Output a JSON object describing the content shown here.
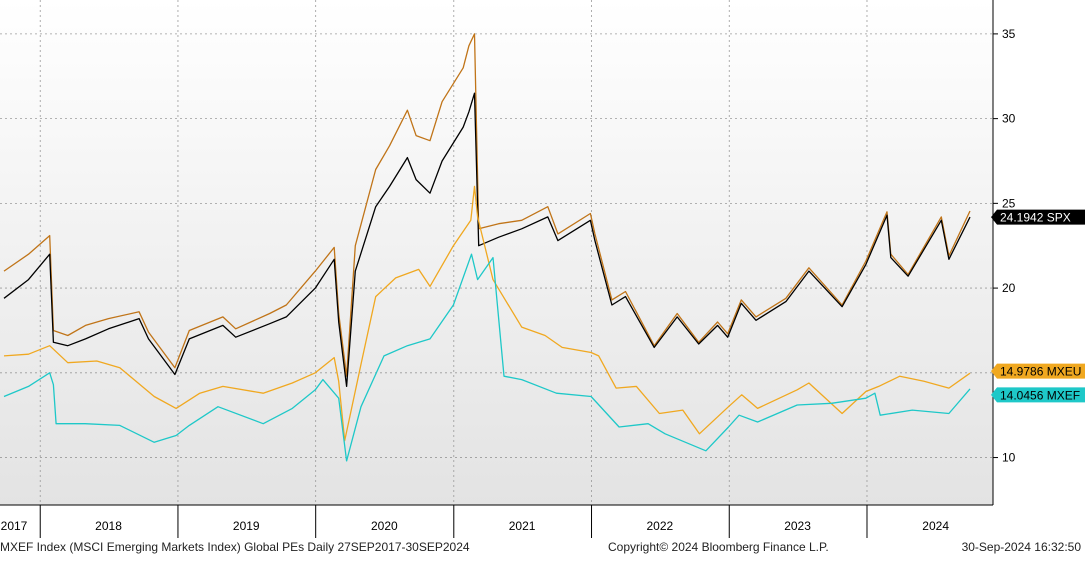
{
  "footer": {
    "description": "MXEF Index (MSCI Emerging Markets Index) Global PEs  Daily 27SEP2017-30SEP2024",
    "copyright": "Copyright© 2024 Bloomberg Finance L.P.",
    "timestamp": "30-Sep-2024 16:32:50"
  },
  "chart_data": {
    "type": "line",
    "title": "",
    "xlabel": "",
    "ylabel": "",
    "x_range": [
      "2017-09-27",
      "2024-09-30"
    ],
    "ylim": [
      7.2,
      37
    ],
    "y_ticks": [
      10,
      15,
      20,
      25,
      30,
      35
    ],
    "x_tick_labels": [
      "2017",
      "2018",
      "2019",
      "2020",
      "2021",
      "2022",
      "2023",
      "2024"
    ],
    "x_tick_dates": [
      "2017-07-01",
      "2018-07-01",
      "2019-07-01",
      "2020-07-01",
      "2021-07-01",
      "2022-07-01",
      "2023-07-01",
      "2024-07-01"
    ],
    "year_boundaries": [
      "2018-01-01",
      "2019-01-01",
      "2020-01-01",
      "2021-01-01",
      "2022-01-01",
      "2023-01-01",
      "2024-01-01"
    ],
    "grid": true,
    "series": [
      {
        "id": "brown",
        "color": "#c07418",
        "points": [
          [
            "2017-09-27",
            21.0
          ],
          [
            "2017-12-01",
            22.0
          ],
          [
            "2018-01-26",
            23.1
          ],
          [
            "2018-02-05",
            17.5
          ],
          [
            "2018-03-15",
            17.2
          ],
          [
            "2018-05-01",
            17.8
          ],
          [
            "2018-07-01",
            18.2
          ],
          [
            "2018-09-20",
            18.6
          ],
          [
            "2018-10-15",
            17.4
          ],
          [
            "2018-12-24",
            15.3
          ],
          [
            "2019-01-31",
            17.5
          ],
          [
            "2019-04-30",
            18.3
          ],
          [
            "2019-06-03",
            17.6
          ],
          [
            "2019-09-01",
            18.5
          ],
          [
            "2019-10-15",
            19.0
          ],
          [
            "2019-12-31",
            21.0
          ],
          [
            "2020-02-19",
            22.4
          ],
          [
            "2020-03-02",
            18.5
          ],
          [
            "2020-03-23",
            14.8
          ],
          [
            "2020-04-15",
            22.5
          ],
          [
            "2020-06-08",
            27.0
          ],
          [
            "2020-07-15",
            28.4
          ],
          [
            "2020-08-31",
            30.5
          ],
          [
            "2020-09-23",
            29.0
          ],
          [
            "2020-10-30",
            28.7
          ],
          [
            "2020-12-01",
            31.0
          ],
          [
            "2021-01-26",
            33.0
          ],
          [
            "2021-02-10",
            34.3
          ],
          [
            "2021-02-25",
            35.0
          ],
          [
            "2021-03-08",
            23.5
          ],
          [
            "2021-04-30",
            23.8
          ],
          [
            "2021-06-30",
            24.0
          ],
          [
            "2021-09-07",
            24.8
          ],
          [
            "2021-10-04",
            23.2
          ],
          [
            "2021-12-29",
            24.4
          ],
          [
            "2022-01-10",
            23.2
          ],
          [
            "2022-02-24",
            19.3
          ],
          [
            "2022-04-01",
            19.8
          ],
          [
            "2022-06-16",
            16.6
          ],
          [
            "2022-08-16",
            18.5
          ],
          [
            "2022-10-12",
            16.8
          ],
          [
            "2022-12-01",
            18.0
          ],
          [
            "2022-12-28",
            17.3
          ],
          [
            "2023-02-02",
            19.3
          ],
          [
            "2023-03-13",
            18.3
          ],
          [
            "2023-05-31",
            19.4
          ],
          [
            "2023-07-31",
            21.2
          ],
          [
            "2023-10-27",
            19.0
          ],
          [
            "2023-12-29",
            21.6
          ],
          [
            "2024-02-23",
            24.5
          ],
          [
            "2024-03-04",
            22.0
          ],
          [
            "2024-04-19",
            20.8
          ],
          [
            "2024-07-16",
            24.2
          ],
          [
            "2024-08-05",
            21.9
          ],
          [
            "2024-09-30",
            24.55
          ]
        ]
      },
      {
        "id": "black",
        "label": "24.1942 SPX",
        "color": "#000000",
        "points": [
          [
            "2017-09-27",
            19.4
          ],
          [
            "2017-12-01",
            20.5
          ],
          [
            "2018-01-26",
            22.0
          ],
          [
            "2018-02-05",
            16.8
          ],
          [
            "2018-03-15",
            16.6
          ],
          [
            "2018-05-01",
            17.0
          ],
          [
            "2018-07-01",
            17.6
          ],
          [
            "2018-09-20",
            18.2
          ],
          [
            "2018-10-15",
            17.0
          ],
          [
            "2018-12-24",
            14.9
          ],
          [
            "2019-01-31",
            17.0
          ],
          [
            "2019-04-30",
            17.8
          ],
          [
            "2019-06-03",
            17.1
          ],
          [
            "2019-09-01",
            17.9
          ],
          [
            "2019-10-15",
            18.3
          ],
          [
            "2019-12-31",
            20.0
          ],
          [
            "2020-02-19",
            21.7
          ],
          [
            "2020-03-02",
            18.0
          ],
          [
            "2020-03-23",
            14.2
          ],
          [
            "2020-04-15",
            21.0
          ],
          [
            "2020-06-08",
            24.8
          ],
          [
            "2020-07-15",
            26.0
          ],
          [
            "2020-08-31",
            27.7
          ],
          [
            "2020-09-23",
            26.4
          ],
          [
            "2020-10-30",
            25.6
          ],
          [
            "2020-12-01",
            27.5
          ],
          [
            "2021-01-26",
            29.5
          ],
          [
            "2021-02-10",
            30.4
          ],
          [
            "2021-02-25",
            31.5
          ],
          [
            "2021-03-08",
            22.5
          ],
          [
            "2021-04-30",
            23.0
          ],
          [
            "2021-06-30",
            23.5
          ],
          [
            "2021-09-07",
            24.2
          ],
          [
            "2021-10-04",
            22.8
          ],
          [
            "2021-12-29",
            24.0
          ],
          [
            "2022-01-10",
            22.8
          ],
          [
            "2022-02-24",
            19.0
          ],
          [
            "2022-04-01",
            19.5
          ],
          [
            "2022-06-16",
            16.5
          ],
          [
            "2022-08-16",
            18.3
          ],
          [
            "2022-10-12",
            16.7
          ],
          [
            "2022-12-01",
            17.8
          ],
          [
            "2022-12-28",
            17.1
          ],
          [
            "2023-02-02",
            19.1
          ],
          [
            "2023-03-13",
            18.1
          ],
          [
            "2023-05-31",
            19.2
          ],
          [
            "2023-07-31",
            21.0
          ],
          [
            "2023-10-27",
            18.9
          ],
          [
            "2023-12-29",
            21.4
          ],
          [
            "2024-02-23",
            24.3
          ],
          [
            "2024-03-04",
            21.8
          ],
          [
            "2024-04-19",
            20.7
          ],
          [
            "2024-07-16",
            24.0
          ],
          [
            "2024-08-05",
            21.7
          ],
          [
            "2024-09-30",
            24.19
          ]
        ]
      },
      {
        "id": "yellow",
        "label": "14.9786 MXEU",
        "color": "#f0a820",
        "points": [
          [
            "2017-09-27",
            16.0
          ],
          [
            "2017-12-01",
            16.1
          ],
          [
            "2018-01-26",
            16.6
          ],
          [
            "2018-03-15",
            15.6
          ],
          [
            "2018-05-31",
            15.7
          ],
          [
            "2018-07-31",
            15.3
          ],
          [
            "2018-10-30",
            13.6
          ],
          [
            "2018-12-27",
            12.9
          ],
          [
            "2019-02-28",
            13.8
          ],
          [
            "2019-04-30",
            14.2
          ],
          [
            "2019-08-15",
            13.8
          ],
          [
            "2019-10-31",
            14.4
          ],
          [
            "2019-12-31",
            15.0
          ],
          [
            "2020-02-19",
            15.9
          ],
          [
            "2020-03-02",
            14.5
          ],
          [
            "2020-03-18",
            11.0
          ],
          [
            "2020-04-30",
            15.5
          ],
          [
            "2020-06-08",
            19.5
          ],
          [
            "2020-07-31",
            20.6
          ],
          [
            "2020-09-30",
            21.1
          ],
          [
            "2020-10-30",
            20.1
          ],
          [
            "2020-12-31",
            22.5
          ],
          [
            "2021-02-15",
            24.0
          ],
          [
            "2021-02-25",
            26.0
          ],
          [
            "2021-03-05",
            24.2
          ],
          [
            "2021-04-15",
            20.5
          ],
          [
            "2021-06-30",
            17.7
          ],
          [
            "2021-08-31",
            17.2
          ],
          [
            "2021-10-15",
            16.5
          ],
          [
            "2021-12-31",
            16.2
          ],
          [
            "2022-01-20",
            16.0
          ],
          [
            "2022-03-07",
            14.1
          ],
          [
            "2022-04-30",
            14.2
          ],
          [
            "2022-06-30",
            12.6
          ],
          [
            "2022-08-31",
            12.8
          ],
          [
            "2022-10-14",
            11.4
          ],
          [
            "2022-12-30",
            13.0
          ],
          [
            "2023-02-03",
            13.7
          ],
          [
            "2023-03-17",
            12.9
          ],
          [
            "2023-06-30",
            14.0
          ],
          [
            "2023-07-31",
            14.4
          ],
          [
            "2023-10-27",
            12.6
          ],
          [
            "2023-12-29",
            13.9
          ],
          [
            "2024-02-01",
            14.2
          ],
          [
            "2024-03-28",
            14.8
          ],
          [
            "2024-05-31",
            14.5
          ],
          [
            "2024-08-05",
            14.1
          ],
          [
            "2024-09-30",
            14.98
          ]
        ]
      },
      {
        "id": "cyan",
        "label": "14.0456 MXEF",
        "color": "#1ec8c8",
        "points": [
          [
            "2017-09-27",
            13.6
          ],
          [
            "2017-12-01",
            14.2
          ],
          [
            "2018-01-26",
            15.0
          ],
          [
            "2018-02-05",
            14.3
          ],
          [
            "2018-02-12",
            12.0
          ],
          [
            "2018-04-30",
            12.0
          ],
          [
            "2018-07-31",
            11.9
          ],
          [
            "2018-10-30",
            10.9
          ],
          [
            "2018-12-27",
            11.3
          ],
          [
            "2019-01-31",
            11.9
          ],
          [
            "2019-04-17",
            13.0
          ],
          [
            "2019-08-15",
            12.0
          ],
          [
            "2019-10-31",
            12.9
          ],
          [
            "2019-12-31",
            14.0
          ],
          [
            "2020-01-20",
            14.6
          ],
          [
            "2020-03-02",
            13.5
          ],
          [
            "2020-03-23",
            9.8
          ],
          [
            "2020-04-30",
            13.0
          ],
          [
            "2020-06-30",
            16.0
          ],
          [
            "2020-08-31",
            16.6
          ],
          [
            "2020-10-30",
            17.0
          ],
          [
            "2020-12-31",
            19.0
          ],
          [
            "2021-02-17",
            22.0
          ],
          [
            "2021-03-05",
            20.5
          ],
          [
            "2021-04-15",
            21.8
          ],
          [
            "2021-05-14",
            14.8
          ],
          [
            "2021-06-30",
            14.6
          ],
          [
            "2021-09-30",
            13.8
          ],
          [
            "2021-12-31",
            13.6
          ],
          [
            "2022-03-15",
            11.8
          ],
          [
            "2022-05-31",
            12.0
          ],
          [
            "2022-07-15",
            11.4
          ],
          [
            "2022-10-31",
            10.4
          ],
          [
            "2022-12-30",
            11.8
          ],
          [
            "2023-01-27",
            12.5
          ],
          [
            "2023-03-17",
            12.1
          ],
          [
            "2023-06-30",
            13.1
          ],
          [
            "2023-09-29",
            13.2
          ],
          [
            "2023-12-29",
            13.5
          ],
          [
            "2024-01-22",
            13.8
          ],
          [
            "2024-02-05",
            12.5
          ],
          [
            "2024-04-30",
            12.8
          ],
          [
            "2024-08-05",
            12.6
          ],
          [
            "2024-09-30",
            14.05
          ]
        ]
      }
    ]
  }
}
